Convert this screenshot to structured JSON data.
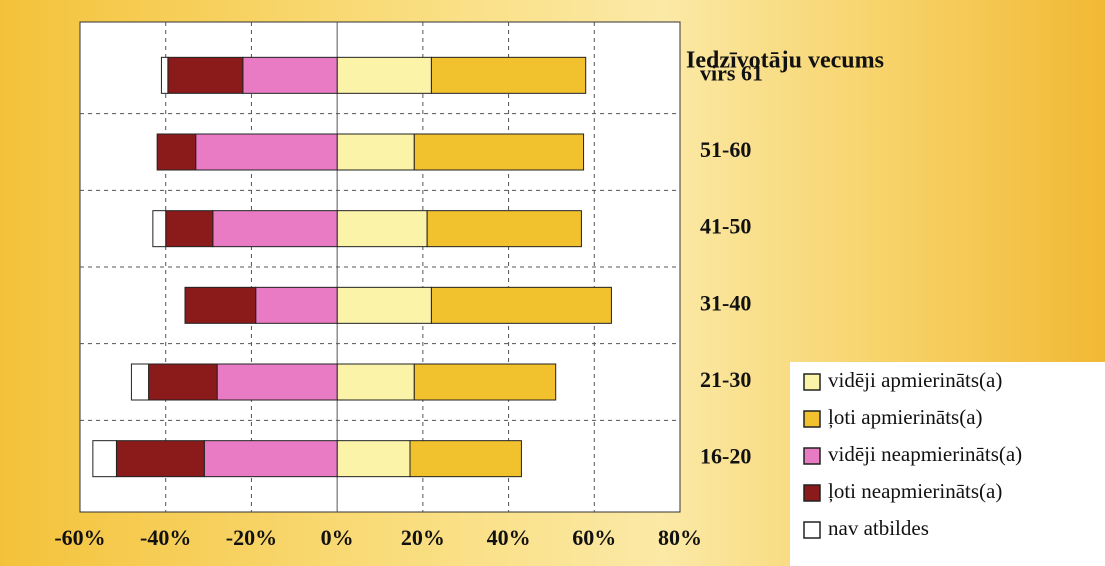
{
  "chart_data": {
    "type": "diverging-stacked-bar",
    "title": "Iedzīvotāju vecums",
    "categories": [
      "virs 61",
      "51-60",
      "41-50",
      "31-40",
      "21-30",
      "16-20"
    ],
    "series": [
      {
        "name": "vidēji apmierināts(a)",
        "color": "#fbf3a8",
        "values": [
          22,
          18,
          21,
          22,
          18,
          17
        ]
      },
      {
        "name": "ļoti apmierināts(a)",
        "color": "#f2c22e",
        "values": [
          36,
          39.5,
          36,
          42,
          33,
          26
        ]
      },
      {
        "name": "vidēji neapmierināts(a)",
        "color": "#e87bc4",
        "values": [
          -22,
          -33,
          -29,
          -19,
          -28,
          -31
        ]
      },
      {
        "name": "ļoti neapmierināts(a)",
        "color": "#8b1a1a",
        "values": [
          -17.5,
          -9,
          -11,
          -16.5,
          -16,
          -20.5
        ]
      },
      {
        "name": "nav atbildes",
        "color": "#ffffff",
        "values": [
          -1.5,
          0,
          -3,
          0,
          -4,
          -5.5
        ]
      }
    ],
    "xlim": [
      -60,
      80
    ],
    "xticks": [
      {
        "value": -60,
        "label": "-60%"
      },
      {
        "value": -40,
        "label": "-40%"
      },
      {
        "value": -20,
        "label": "-20%"
      },
      {
        "value": 0,
        "label": "0%"
      },
      {
        "value": 20,
        "label": "20%"
      },
      {
        "value": 40,
        "label": "40%"
      },
      {
        "value": 60,
        "label": "60%"
      },
      {
        "value": 80,
        "label": "80%"
      }
    ],
    "grid": true
  }
}
